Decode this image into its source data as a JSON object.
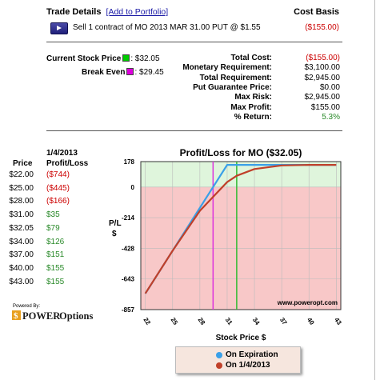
{
  "trade": {
    "title": "Trade Details",
    "add_link": "[Add to Portfolio]",
    "cost_basis_header": "Cost Basis",
    "order_text": "Sell 1 contract of MO 2013 MAR 31.00 PUT @ $1.55",
    "order_cost": "($155.00)"
  },
  "stock": {
    "current_label": "Current Stock Price",
    "current_value": ": $32.05",
    "current_color": "#00cc00",
    "break_even_label": "Break Even",
    "break_even_value": ": $29.45",
    "break_even_color": "#dd00dd"
  },
  "summary": [
    {
      "label": "Total Cost:",
      "value": "($155.00)",
      "color": "red"
    },
    {
      "label": "Monetary Requirement:",
      "value": "$3,100.00",
      "color": "black"
    },
    {
      "label": "Total Requirement:",
      "value": "$2,945.00",
      "color": "black"
    },
    {
      "label": "Put Guarantee Price:",
      "value": "$0.00",
      "color": "black"
    },
    {
      "label": "Max Risk:",
      "value": "$2,945.00",
      "color": "black"
    },
    {
      "label": "Max Profit:",
      "value": "$155.00",
      "color": "black"
    },
    {
      "label": "% Return:",
      "value": "5.3%",
      "color": "green"
    }
  ],
  "table": {
    "date_header": "1/4/2013",
    "price_header": "Price",
    "pl_header": "Profit/Loss",
    "rows": [
      {
        "price": "$22.00",
        "pl": "($744)",
        "color": "red"
      },
      {
        "price": "$25.00",
        "pl": "($445)",
        "color": "red"
      },
      {
        "price": "$28.00",
        "pl": "($166)",
        "color": "red"
      },
      {
        "price": "$31.00",
        "pl": "$35",
        "color": "green"
      },
      {
        "price": "$32.05",
        "pl": "$79",
        "color": "green"
      },
      {
        "price": "$34.00",
        "pl": "$126",
        "color": "green"
      },
      {
        "price": "$37.00",
        "pl": "$151",
        "color": "green"
      },
      {
        "price": "$40.00",
        "pl": "$155",
        "color": "green"
      },
      {
        "price": "$43.00",
        "pl": "$155",
        "color": "green"
      }
    ]
  },
  "branding": {
    "powered_by": "Powered By:",
    "logo_text": "POWEROptions",
    "watermark": "www.poweropt.com"
  },
  "chart_data": {
    "type": "line",
    "title": "Profit/Loss for MO ($32.05)",
    "xlabel": "Stock Price $",
    "ylabel": "P/L $",
    "xlim": [
      21.5,
      43.5
    ],
    "ylim": [
      -857,
      178
    ],
    "x_ticks": [
      "22",
      "25",
      "28",
      "31",
      "34",
      "37",
      "40",
      "43"
    ],
    "y_ticks": [
      "178",
      "0",
      "-214",
      "-428",
      "-643",
      "-857"
    ],
    "markers": {
      "current_price": 32.05,
      "break_even": 29.45
    },
    "series": [
      {
        "name": "On Expiration",
        "color": "#3aa0e8",
        "x": [
          22,
          25,
          28,
          29.45,
          31,
          34,
          37,
          40,
          43
        ],
        "y": [
          -745,
          -445,
          -145,
          0,
          155,
          155,
          155,
          155,
          155
        ]
      },
      {
        "name": "On 1/4/2013",
        "color": "#c0402a",
        "x": [
          22,
          25,
          28,
          31,
          32.05,
          34,
          37,
          40,
          43
        ],
        "y": [
          -744,
          -445,
          -166,
          35,
          79,
          126,
          151,
          155,
          155
        ]
      }
    ]
  }
}
